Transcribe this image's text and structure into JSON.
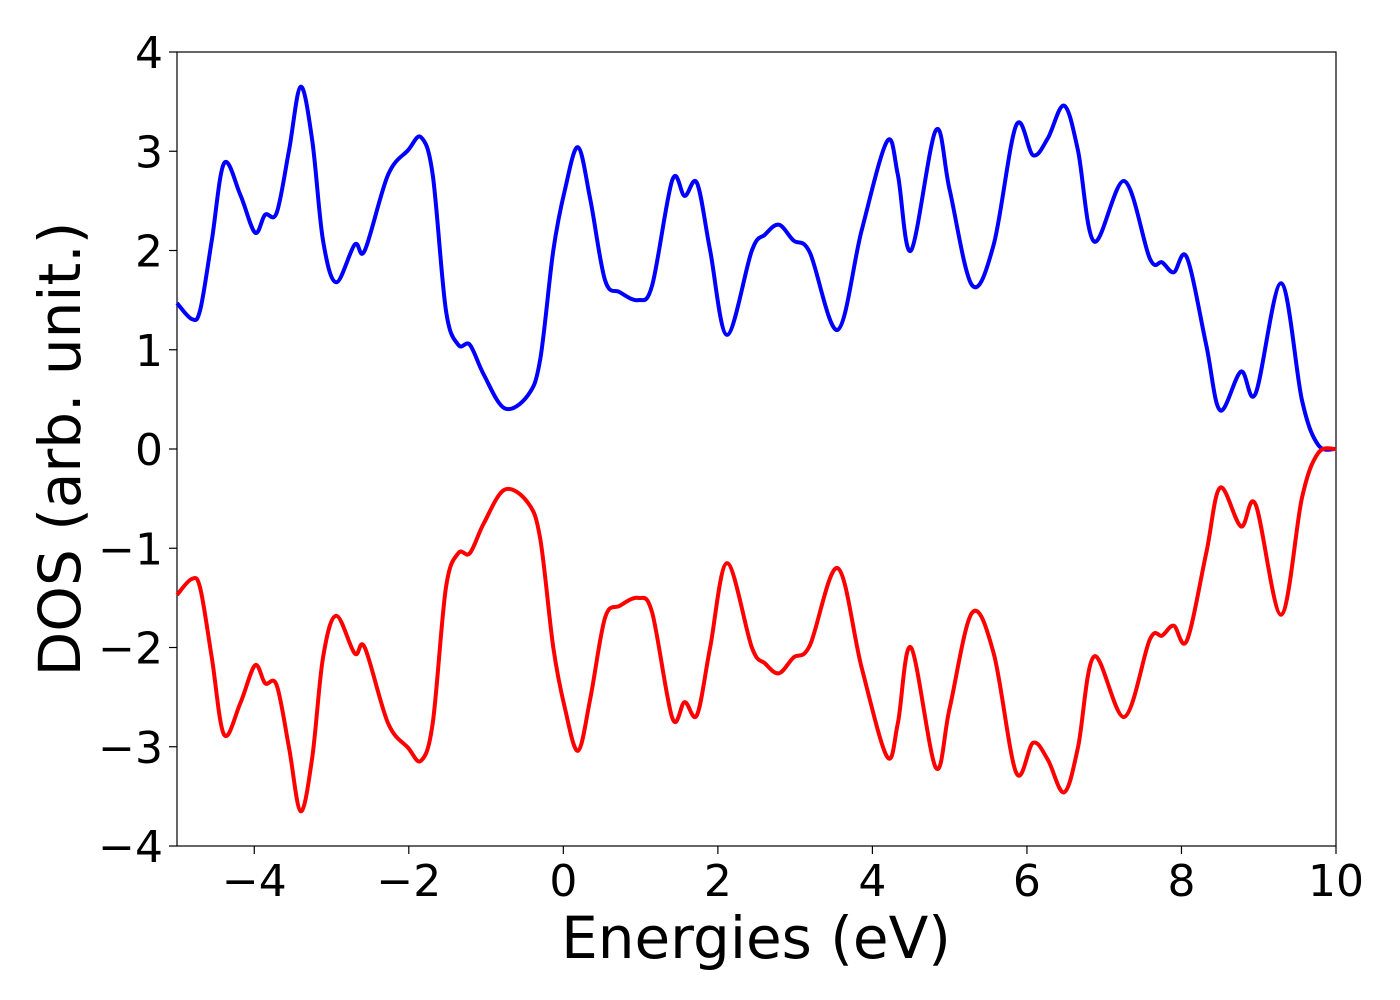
{
  "chart_data": {
    "type": "line",
    "xlabel": "Energies (eV)",
    "ylabel": "DOS (arb. unit.)",
    "xlim": [
      -5,
      10
    ],
    "ylim": [
      -4,
      4
    ],
    "xticks": [
      {
        "value": -4,
        "label": "−4"
      },
      {
        "value": -2,
        "label": "−2"
      },
      0,
      2,
      4,
      6,
      8,
      10
    ],
    "yticks": [
      {
        "value": -4,
        "label": "−4"
      },
      {
        "value": -3,
        "label": "−3"
      },
      {
        "value": -2,
        "label": "−2"
      },
      {
        "value": -1,
        "label": "−1"
      },
      0,
      1,
      2,
      3,
      4
    ],
    "grid": false,
    "x": [
      -5,
      -4.81,
      -4.7,
      -4.55,
      -4.39,
      -4.18,
      -3.99,
      -3.86,
      -3.71,
      -3.55,
      -3.4,
      -3.25,
      -3.11,
      -2.94,
      -2.7,
      -2.57,
      -2.27,
      -2.01,
      -1.84,
      -1.69,
      -1.52,
      -1.36,
      -1.21,
      -1.03,
      -0.76,
      -0.46,
      -0.3,
      -0.13,
      0.02,
      0.19,
      0.35,
      0.54,
      0.73,
      0.97,
      1.15,
      1.41,
      1.57,
      1.73,
      1.9,
      2.12,
      2.44,
      2.61,
      2.79,
      2.98,
      3.19,
      3.55,
      3.86,
      4.19,
      4.33,
      4.5,
      4.82,
      5.0,
      5.29,
      5.57,
      5.86,
      6.08,
      6.27,
      6.48,
      6.66,
      6.87,
      7.26,
      7.59,
      7.75,
      7.9,
      8.07,
      8.32,
      8.5,
      8.77,
      8.96,
      9.29,
      9.56,
      9.77,
      10
    ],
    "series": [
      {
        "color": "#0000ff",
        "values": [
          1.47,
          1.31,
          1.4,
          2.1,
          2.88,
          2.56,
          2.18,
          2.36,
          2.38,
          3.01,
          3.65,
          3.11,
          2.1,
          1.68,
          2.06,
          2.0,
          2.76,
          3.01,
          3.14,
          2.76,
          1.4,
          1.05,
          1.05,
          0.75,
          0.41,
          0.54,
          0.9,
          2.0,
          2.61,
          3.04,
          2.51,
          1.7,
          1.58,
          1.5,
          1.65,
          2.71,
          2.55,
          2.68,
          2.0,
          1.15,
          2.0,
          2.16,
          2.26,
          2.1,
          1.98,
          1.2,
          2.2,
          3.1,
          2.76,
          2.0,
          3.21,
          2.61,
          1.65,
          2.06,
          3.26,
          2.96,
          3.13,
          3.46,
          3.01,
          2.09,
          2.7,
          1.92,
          1.88,
          1.78,
          1.93,
          1.05,
          0.39,
          0.78,
          0.56,
          1.67,
          0.49,
          0.04,
          0
        ]
      },
      {
        "color": "#ff0000",
        "values": [
          -1.47,
          -1.31,
          -1.4,
          -2.1,
          -2.88,
          -2.56,
          -2.18,
          -2.36,
          -2.38,
          -3.01,
          -3.65,
          -3.11,
          -2.1,
          -1.68,
          -2.06,
          -2.0,
          -2.76,
          -3.01,
          -3.14,
          -2.76,
          -1.4,
          -1.05,
          -1.05,
          -0.75,
          -0.41,
          -0.54,
          -0.9,
          -2.0,
          -2.61,
          -3.04,
          -2.51,
          -1.7,
          -1.58,
          -1.5,
          -1.65,
          -2.71,
          -2.55,
          -2.68,
          -2.0,
          -1.15,
          -2.0,
          -2.16,
          -2.26,
          -2.1,
          -1.98,
          -1.2,
          -2.2,
          -3.1,
          -2.76,
          -2.0,
          -3.21,
          -2.61,
          -1.65,
          -2.06,
          -3.26,
          -2.96,
          -3.13,
          -3.46,
          -3.01,
          -2.09,
          -2.7,
          -1.92,
          -1.88,
          -1.78,
          -1.93,
          -1.05,
          -0.39,
          -0.78,
          -0.56,
          -1.67,
          -0.49,
          -0.04,
          0
        ]
      }
    ]
  }
}
